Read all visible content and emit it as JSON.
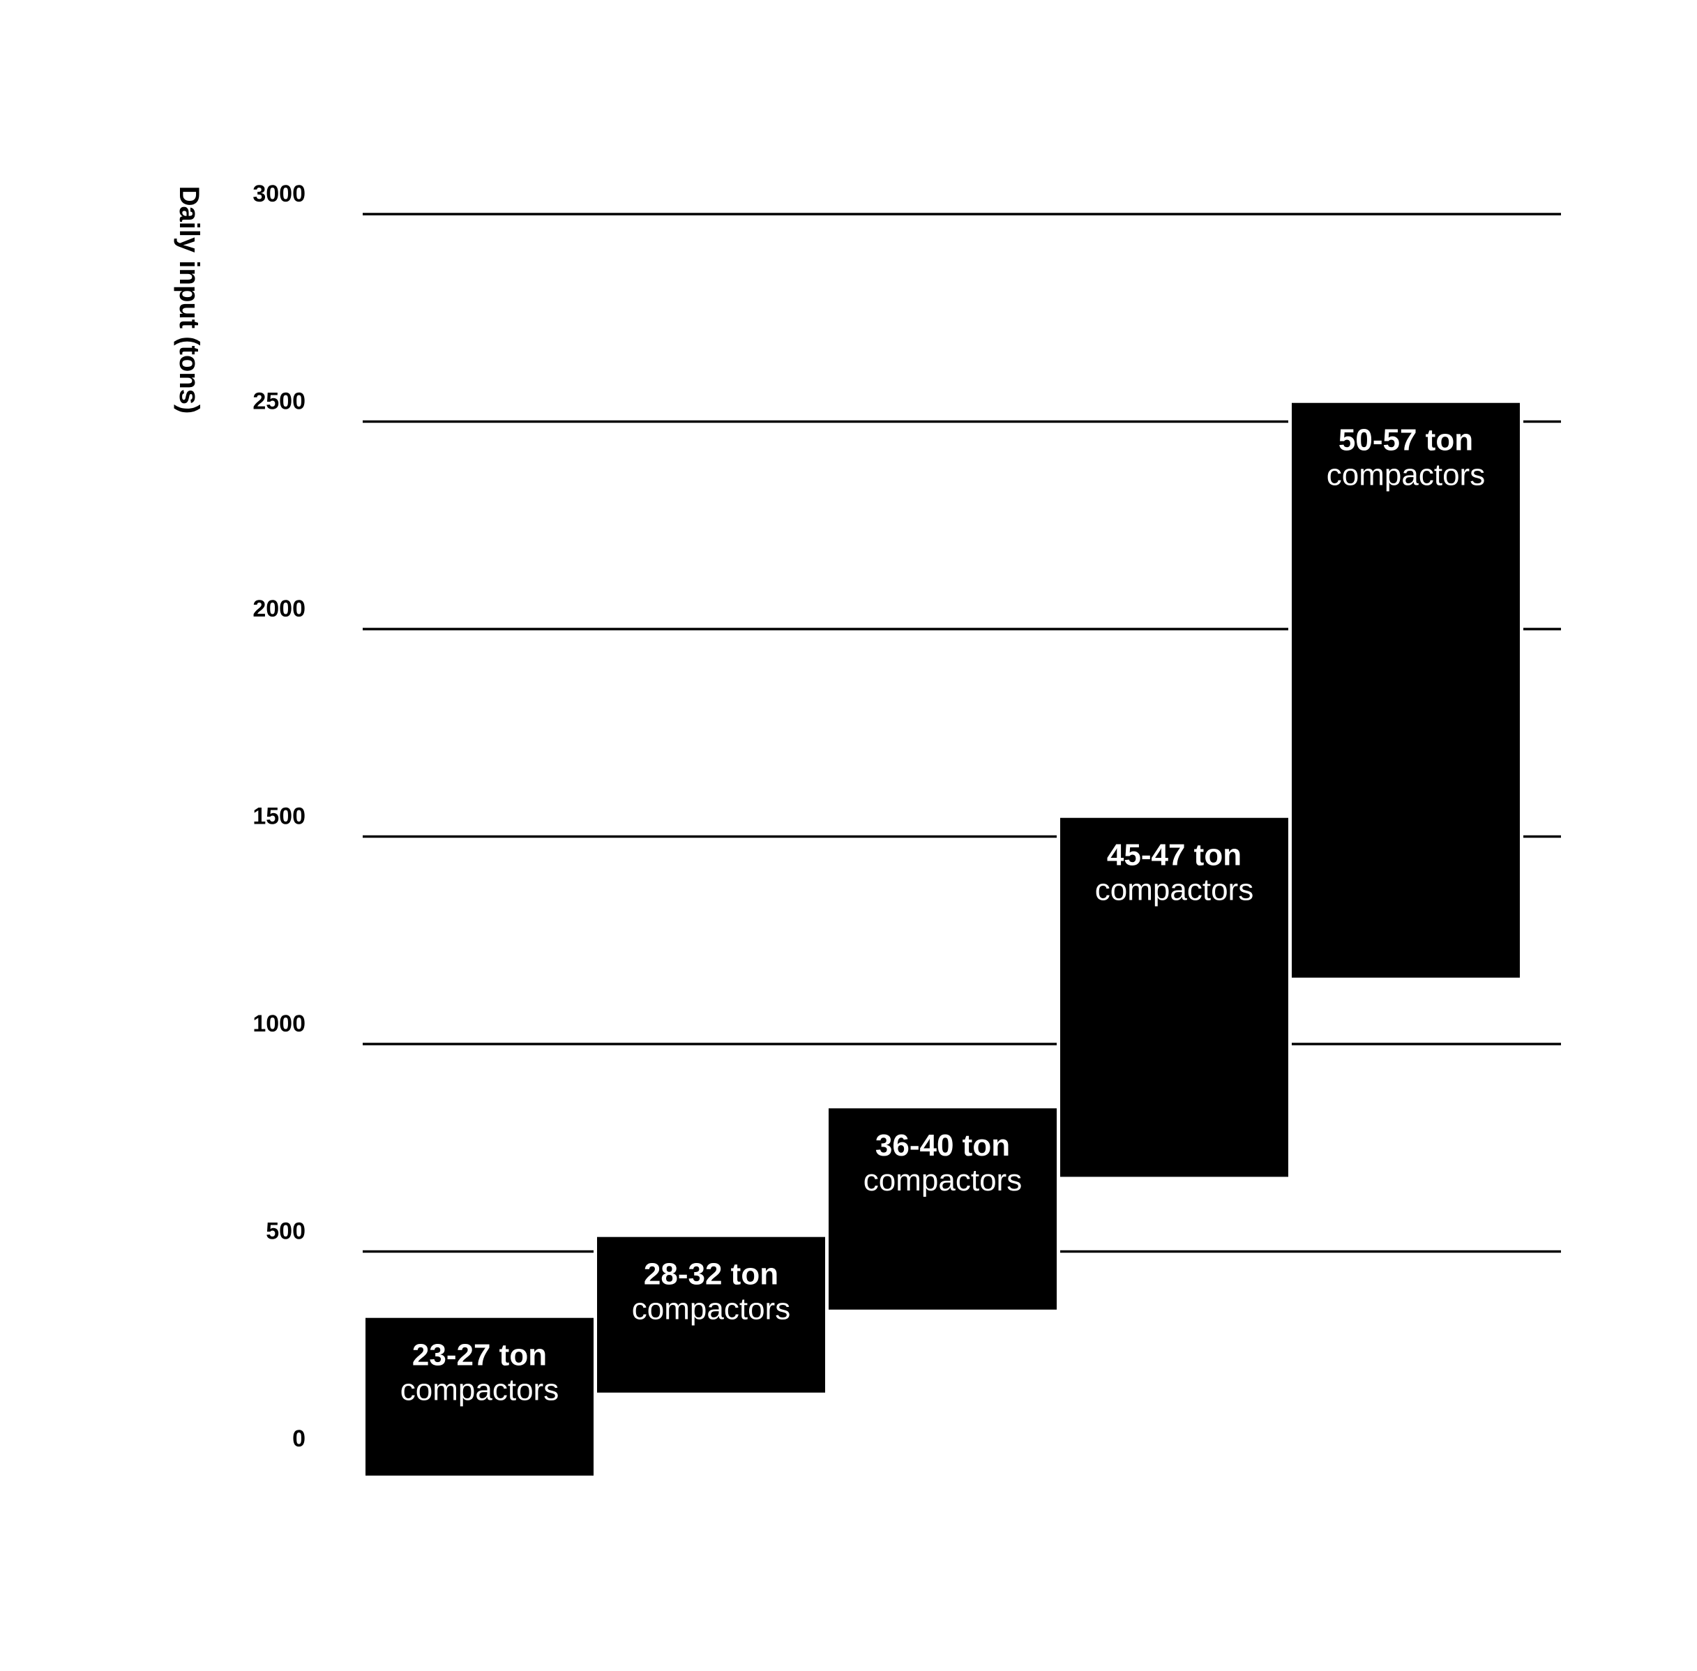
{
  "chart_data": {
    "type": "bar",
    "subtype": "floating-range",
    "title": "",
    "xlabel": "",
    "ylabel": "Daily input (tons)",
    "ylim": [
      0,
      3000
    ],
    "yticks": [
      0,
      500,
      1000,
      1500,
      2000,
      2500,
      3000
    ],
    "ytick_labels": [
      "0",
      "500",
      "1000",
      "1500",
      "2000",
      "2500",
      "3000"
    ],
    "grid": true,
    "legend": "none",
    "bar_color": "#000000",
    "label_color": "#ffffff",
    "bars": [
      {
        "label_bold": "23-27 ton",
        "label": "compactors",
        "low": -40,
        "high": 340
      },
      {
        "label_bold": "28-32 ton",
        "label": "compactors",
        "low": 160,
        "high": 535
      },
      {
        "label_bold": "36-40 ton",
        "label": "compactors",
        "low": 360,
        "high": 845
      },
      {
        "label_bold": "45-47 ton",
        "label": "compactors",
        "low": 680,
        "high": 1545
      },
      {
        "label_bold": "50-57 ton",
        "label": "compactors",
        "low": 1160,
        "high": 2545
      }
    ]
  }
}
